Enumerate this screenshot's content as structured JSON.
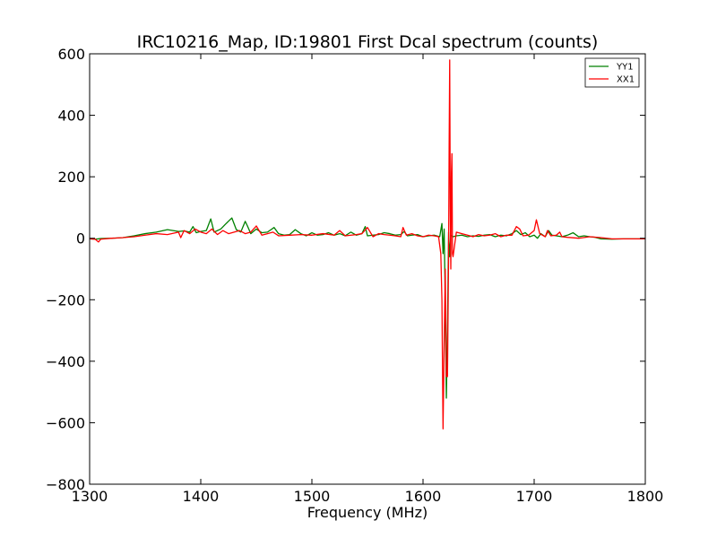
{
  "chart_data": {
    "type": "line",
    "title": "IRC10216_Map, ID:19801 First Dcal spectrum (counts)",
    "xlabel": "Frequency (MHz)",
    "ylabel": "",
    "xlim": [
      1300,
      1800
    ],
    "ylim": [
      -800,
      600
    ],
    "xticks": [
      1300,
      1400,
      1500,
      1600,
      1700,
      1800
    ],
    "yticks": [
      -800,
      -600,
      -400,
      -200,
      0,
      200,
      400,
      600
    ],
    "xtick_labels": [
      "1300",
      "1400",
      "1500",
      "1600",
      "1700",
      "1800"
    ],
    "ytick_labels": [
      "−800",
      "−600",
      "−400",
      "−200",
      "0",
      "200",
      "400",
      "600"
    ],
    "grid": false,
    "legend_position": "top-right",
    "series": [
      {
        "name": "YY1",
        "color": "#008000",
        "x": [
          1300,
          1305,
          1310,
          1320,
          1330,
          1340,
          1350,
          1360,
          1370,
          1375,
          1380,
          1385,
          1390,
          1393,
          1396,
          1400,
          1405,
          1409,
          1412,
          1418,
          1422,
          1428,
          1432,
          1436,
          1440,
          1442,
          1445,
          1450,
          1455,
          1460,
          1466,
          1470,
          1475,
          1480,
          1485,
          1490,
          1495,
          1500,
          1505,
          1510,
          1515,
          1520,
          1525,
          1530,
          1535,
          1540,
          1545,
          1548,
          1550,
          1555,
          1560,
          1565,
          1570,
          1575,
          1580,
          1583,
          1586,
          1590,
          1595,
          1600,
          1605,
          1610,
          1615,
          1617,
          1618,
          1619,
          1620,
          1621,
          1622,
          1623,
          1624,
          1625,
          1627,
          1630,
          1635,
          1640,
          1645,
          1650,
          1655,
          1660,
          1665,
          1670,
          1675,
          1680,
          1684,
          1688,
          1692,
          1696,
          1700,
          1703,
          1706,
          1710,
          1713,
          1716,
          1720,
          1725,
          1730,
          1735,
          1740,
          1745,
          1750,
          1755,
          1760,
          1770,
          1780,
          1790,
          1800
        ],
        "values": [
          -2,
          -3,
          -1,
          0,
          2,
          8,
          15,
          20,
          28,
          25,
          22,
          24,
          20,
          38,
          18,
          22,
          25,
          63,
          20,
          30,
          45,
          66,
          28,
          20,
          55,
          40,
          15,
          30,
          18,
          20,
          35,
          15,
          10,
          12,
          28,
          15,
          8,
          18,
          10,
          12,
          18,
          10,
          15,
          8,
          20,
          10,
          15,
          38,
          8,
          10,
          12,
          18,
          15,
          10,
          12,
          22,
          8,
          10,
          12,
          5,
          8,
          10,
          5,
          48,
          -50,
          30,
          -200,
          -520,
          -300,
          20,
          -60,
          10,
          5,
          8,
          10,
          5,
          8,
          6,
          10,
          12,
          5,
          10,
          8,
          15,
          25,
          12,
          18,
          5,
          10,
          0,
          15,
          5,
          25,
          10,
          8,
          5,
          10,
          18,
          5,
          8,
          5,
          3,
          -2,
          -3,
          -2,
          -2,
          -2
        ]
      },
      {
        "name": "XX1",
        "color": "#ff0000",
        "x": [
          1300,
          1305,
          1308,
          1310,
          1320,
          1330,
          1340,
          1350,
          1360,
          1370,
          1380,
          1382,
          1385,
          1390,
          1395,
          1400,
          1405,
          1410,
          1415,
          1420,
          1425,
          1430,
          1435,
          1440,
          1445,
          1450,
          1455,
          1460,
          1465,
          1470,
          1480,
          1490,
          1500,
          1510,
          1520,
          1525,
          1530,
          1540,
          1545,
          1550,
          1555,
          1560,
          1565,
          1570,
          1575,
          1580,
          1582,
          1585,
          1590,
          1595,
          1600,
          1605,
          1610,
          1614,
          1616,
          1617,
          1618,
          1619,
          1620,
          1621,
          1622,
          1623,
          1623.5,
          1624,
          1624.5,
          1625,
          1625.5,
          1626,
          1626.5,
          1627,
          1630,
          1635,
          1640,
          1645,
          1650,
          1655,
          1660,
          1665,
          1670,
          1675,
          1680,
          1684,
          1687,
          1690,
          1695,
          1700,
          1702,
          1705,
          1710,
          1712,
          1715,
          1720,
          1723,
          1725,
          1730,
          1740,
          1750,
          1760,
          1770,
          1780,
          1790,
          1800
        ],
        "values": [
          -2,
          -3,
          -12,
          -3,
          0,
          2,
          5,
          10,
          15,
          12,
          20,
          2,
          25,
          15,
          30,
          20,
          15,
          30,
          12,
          25,
          15,
          20,
          25,
          15,
          20,
          40,
          10,
          15,
          20,
          8,
          10,
          12,
          10,
          15,
          10,
          25,
          8,
          12,
          15,
          35,
          5,
          15,
          12,
          10,
          8,
          5,
          35,
          10,
          15,
          8,
          5,
          10,
          8,
          5,
          -50,
          -200,
          -620,
          -350,
          -100,
          -450,
          -450,
          -50,
          300,
          580,
          100,
          -100,
          200,
          275,
          -50,
          -60,
          20,
          15,
          10,
          5,
          12,
          8,
          10,
          15,
          5,
          10,
          10,
          38,
          30,
          8,
          10,
          25,
          60,
          15,
          5,
          25,
          8,
          10,
          20,
          5,
          3,
          0,
          5,
          2,
          -2,
          -2,
          -2,
          -2
        ]
      }
    ]
  }
}
